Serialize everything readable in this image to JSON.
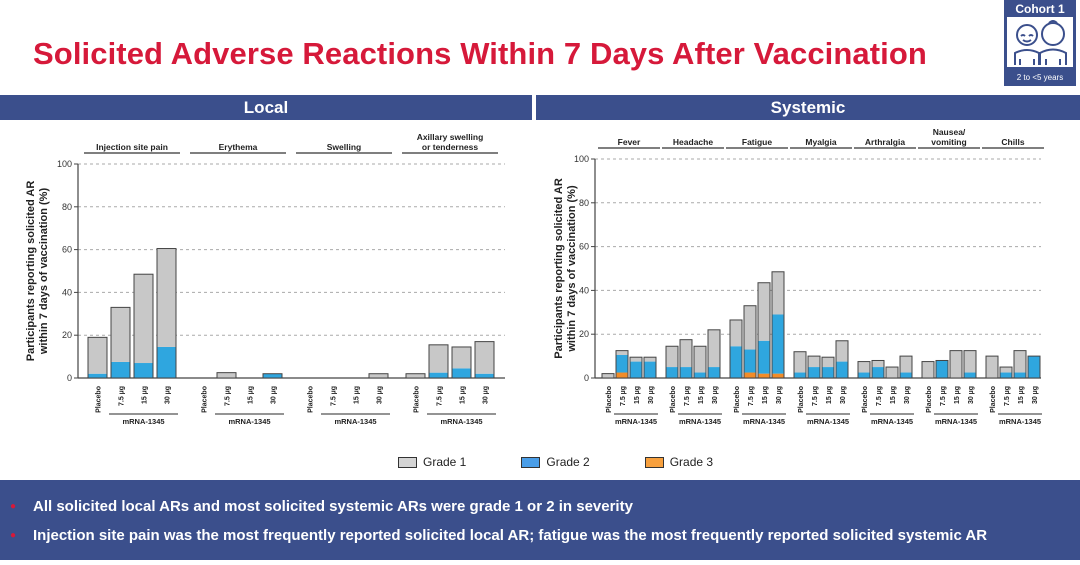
{
  "title": "Solicited Adverse Reactions Within 7 Days After Vaccination",
  "cohort_badge": {
    "label": "Cohort 1",
    "age": "2 to <5 years",
    "icon": "children-icon"
  },
  "sections": {
    "local": "Local",
    "systemic": "Systemic"
  },
  "legend": [
    {
      "label": "Grade 1",
      "color": "#c8c8c8"
    },
    {
      "label": "Grade 2",
      "color": "#2fa6df"
    },
    {
      "label": "Grade 3",
      "color": "#f28c28"
    }
  ],
  "bullets": [
    "All solicited local ARs and most solicited systemic ARs were grade 1 or 2 in severity",
    "Injection site pain was the most frequently reported solicited local AR; fatigue was the most frequently reported solicited systemic AR"
  ],
  "chart_data": [
    {
      "type": "bar",
      "stacked": true,
      "title": "Local",
      "ylabel": "Participants reporting solicited AR within 7 days of vaccination (%)",
      "ylim": [
        0,
        100
      ],
      "yticks": [
        0,
        20,
        40,
        60,
        80,
        100
      ],
      "grid": true,
      "categories": [
        "Placebo",
        "7.5 µg",
        "15 µg",
        "30 µg"
      ],
      "group_label": "mRNA-1345",
      "groups": [
        {
          "name": "Injection site pain",
          "grade1": [
            17,
            25.5,
            41.5,
            46
          ],
          "grade2": [
            2,
            7.5,
            7,
            14.5
          ],
          "grade3": [
            0,
            0,
            0,
            0
          ]
        },
        {
          "name": "Erythema",
          "grade1": [
            0,
            2.5,
            0,
            0
          ],
          "grade2": [
            0,
            0,
            0,
            2
          ],
          "grade3": [
            0,
            0,
            0,
            0
          ]
        },
        {
          "name": "Swelling",
          "grade1": [
            0,
            0,
            0,
            2
          ],
          "grade2": [
            0,
            0,
            0,
            0
          ],
          "grade3": [
            0,
            0,
            0,
            0
          ]
        },
        {
          "name": "Axillary swelling or tenderness",
          "grade1": [
            2,
            13,
            10,
            15
          ],
          "grade2": [
            0,
            2.5,
            4.5,
            2
          ],
          "grade3": [
            0,
            0,
            0,
            0
          ]
        }
      ]
    },
    {
      "type": "bar",
      "stacked": true,
      "title": "Systemic",
      "ylabel": "Participants reporting solicited AR within 7 days of vaccination (%)",
      "ylim": [
        0,
        100
      ],
      "yticks": [
        0,
        20,
        40,
        60,
        80,
        100
      ],
      "grid": true,
      "categories": [
        "Placebo",
        "7.5 µg",
        "15 µg",
        "30 µg"
      ],
      "group_label": "mRNA-1345",
      "groups": [
        {
          "name": "Fever",
          "grade1": [
            2,
            2,
            2,
            2
          ],
          "grade2": [
            0,
            8,
            7.5,
            7.5
          ],
          "grade3": [
            0,
            2.5,
            0,
            0
          ]
        },
        {
          "name": "Headache",
          "grade1": [
            9.5,
            12.5,
            12,
            17
          ],
          "grade2": [
            5,
            5,
            2.5,
            5
          ],
          "grade3": [
            0,
            0,
            0,
            0
          ]
        },
        {
          "name": "Fatigue",
          "grade1": [
            12,
            20,
            26.5,
            19.5
          ],
          "grade2": [
            14.5,
            10.5,
            15,
            27
          ],
          "grade3": [
            0,
            2.5,
            2,
            2
          ]
        },
        {
          "name": "Myalgia",
          "grade1": [
            9.5,
            5,
            4.5,
            9.5
          ],
          "grade2": [
            2.5,
            5,
            5,
            7.5
          ],
          "grade3": [
            0,
            0,
            0,
            0
          ]
        },
        {
          "name": "Arthralgia",
          "grade1": [
            5,
            3,
            5,
            7.5
          ],
          "grade2": [
            2.5,
            5,
            0,
            2.5
          ],
          "grade3": [
            0,
            0,
            0,
            0
          ]
        },
        {
          "name": "Nausea/ vomiting",
          "grade1": [
            7.5,
            0,
            12.5,
            10
          ],
          "grade2": [
            0,
            8,
            0,
            2.5
          ],
          "grade3": [
            0,
            0,
            0,
            0
          ]
        },
        {
          "name": "Chills",
          "grade1": [
            10,
            2.5,
            10,
            0
          ],
          "grade2": [
            0,
            2.5,
            2.5,
            10
          ],
          "grade3": [
            0,
            0,
            0,
            0
          ]
        }
      ]
    }
  ]
}
